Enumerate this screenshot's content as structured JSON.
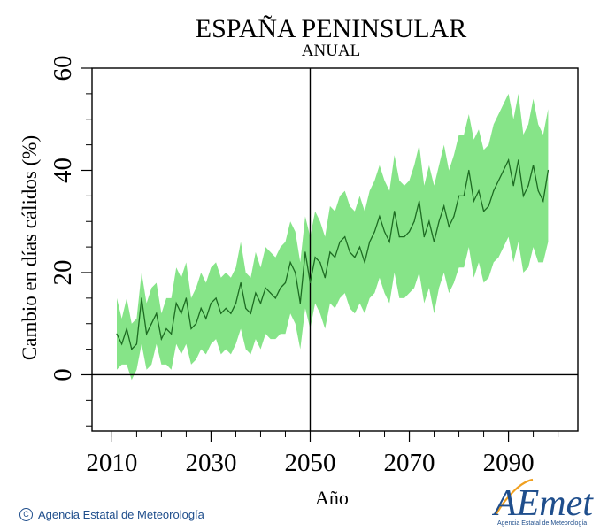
{
  "chart_data": {
    "type": "area",
    "title": "ESPAÑA PENINSULAR",
    "subtitle": "ANUAL",
    "xlabel": "Año",
    "ylabel": "Cambio en días cálidos (%)",
    "xlim": [
      2006,
      2104
    ],
    "ylim": [
      -11,
      60
    ],
    "x_ticks": [
      2010,
      2030,
      2050,
      2070,
      2090
    ],
    "x_minor_step": 5,
    "y_ticks": [
      0,
      20,
      40,
      60
    ],
    "y_minor_step": 5,
    "reference_lines": {
      "x": 2050,
      "y": 0
    },
    "colors": {
      "band": "#86e488",
      "line": "#1d6b22",
      "axis": "#000000"
    },
    "x": [
      2011,
      2012,
      2013,
      2014,
      2015,
      2016,
      2017,
      2018,
      2019,
      2020,
      2021,
      2022,
      2023,
      2024,
      2025,
      2026,
      2027,
      2028,
      2029,
      2030,
      2031,
      2032,
      2033,
      2034,
      2035,
      2036,
      2037,
      2038,
      2039,
      2040,
      2041,
      2042,
      2043,
      2044,
      2045,
      2046,
      2047,
      2048,
      2049,
      2050,
      2051,
      2052,
      2053,
      2054,
      2055,
      2056,
      2057,
      2058,
      2059,
      2060,
      2061,
      2062,
      2063,
      2064,
      2065,
      2066,
      2067,
      2068,
      2069,
      2070,
      2071,
      2072,
      2073,
      2074,
      2075,
      2076,
      2077,
      2078,
      2079,
      2080,
      2081,
      2082,
      2083,
      2084,
      2085,
      2086,
      2087,
      2088,
      2089,
      2090,
      2091,
      2092,
      2093,
      2094,
      2095,
      2096,
      2097,
      2098
    ],
    "series": [
      {
        "role": "median",
        "values": [
          8,
          6,
          9,
          5,
          6,
          15,
          8,
          10,
          12,
          7,
          9,
          8,
          14,
          12,
          15,
          9,
          10,
          13,
          11,
          14,
          15,
          12,
          13,
          12,
          14,
          18,
          13,
          12,
          16,
          14,
          17,
          16,
          15,
          17,
          18,
          22,
          20,
          14,
          24,
          18,
          23,
          22,
          19,
          24,
          23,
          26,
          27,
          24,
          23,
          25,
          22,
          26,
          28,
          31,
          28,
          26,
          32,
          27,
          27,
          28,
          30,
          34,
          27,
          30,
          26,
          30,
          33,
          29,
          31,
          35,
          35,
          40,
          34,
          36,
          32,
          33,
          36,
          38,
          40,
          42,
          37,
          42,
          35,
          37,
          41,
          36,
          34,
          40
        ],
        "lower": [
          1,
          2,
          2,
          -1,
          1,
          6,
          1,
          2,
          6,
          2,
          2,
          1,
          6,
          4,
          6,
          2,
          3,
          5,
          4,
          6,
          7,
          4,
          5,
          4,
          6,
          9,
          5,
          4,
          7,
          5,
          8,
          7,
          7,
          8,
          8,
          12,
          10,
          5,
          13,
          9,
          14,
          12,
          9,
          14,
          13,
          15,
          16,
          13,
          12,
          14,
          12,
          15,
          16,
          19,
          16,
          14,
          20,
          15,
          15,
          16,
          17,
          20,
          14,
          17,
          12,
          17,
          20,
          16,
          18,
          21,
          21,
          25,
          19,
          22,
          18,
          19,
          22,
          23,
          25,
          27,
          22,
          26,
          20,
          21,
          25,
          22,
          22,
          26
        ],
        "upper": [
          15,
          11,
          15,
          10,
          11,
          20,
          14,
          17,
          18,
          12,
          15,
          15,
          21,
          19,
          22,
          15,
          17,
          20,
          18,
          21,
          22,
          19,
          20,
          19,
          21,
          26,
          20,
          19,
          24,
          21,
          25,
          24,
          23,
          25,
          26,
          30,
          28,
          22,
          31,
          27,
          32,
          30,
          27,
          33,
          32,
          35,
          36,
          33,
          32,
          35,
          32,
          36,
          38,
          41,
          38,
          36,
          43,
          38,
          37,
          38,
          41,
          45,
          37,
          41,
          37,
          41,
          45,
          40,
          43,
          47,
          47,
          51,
          46,
          48,
          44,
          45,
          49,
          51,
          53,
          55,
          50,
          55,
          47,
          49,
          54,
          49,
          47,
          52
        ]
      }
    ]
  },
  "footer": {
    "credit_text": "Agencia Estatal de Meteorología",
    "copyright_symbol": "C",
    "logo_text": "AEmet",
    "logo_subtext": "Agencia Estatal de Meteorología"
  }
}
